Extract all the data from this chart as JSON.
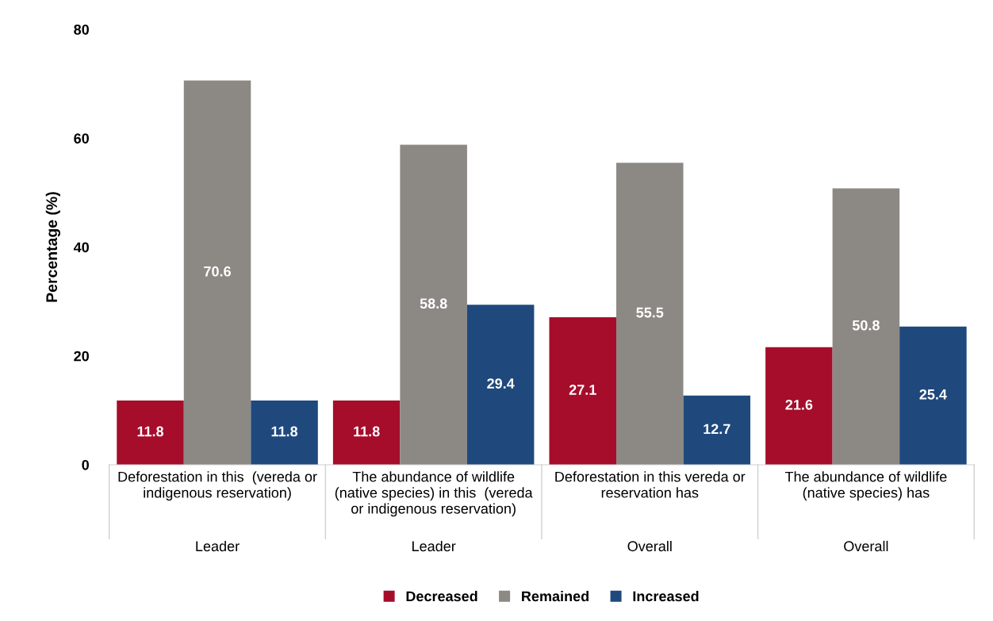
{
  "chart_data": {
    "type": "bar",
    "ylabel": "Percentage (%)",
    "categories": [
      "Deforestation in this  (vereda or indigenous reservation)",
      "The abundance of wildlife (native species) in this  (vereda or indigenous reservation)",
      "Deforestation in this vereda or reservation has",
      "The abundance of wildlife (native species) has"
    ],
    "series": [
      {
        "name": "Decreased",
        "color": "#a50d2b",
        "values": [
          11.8,
          11.8,
          27.1,
          21.6
        ]
      },
      {
        "name": "Remained",
        "color": "#8c8985",
        "values": [
          70.6,
          58.8,
          55.5,
          50.8
        ]
      },
      {
        "name": "Increased",
        "color": "#1f497d",
        "values": [
          11.8,
          29.4,
          12.7,
          25.4
        ]
      }
    ],
    "annotations": [
      "Leader",
      "Leader",
      "Overall",
      "Overall"
    ],
    "ylim": [
      0,
      80
    ],
    "yticks": [
      0,
      20,
      40,
      60,
      80
    ],
    "data_labels": true,
    "grid": false,
    "legend": "bottom"
  }
}
